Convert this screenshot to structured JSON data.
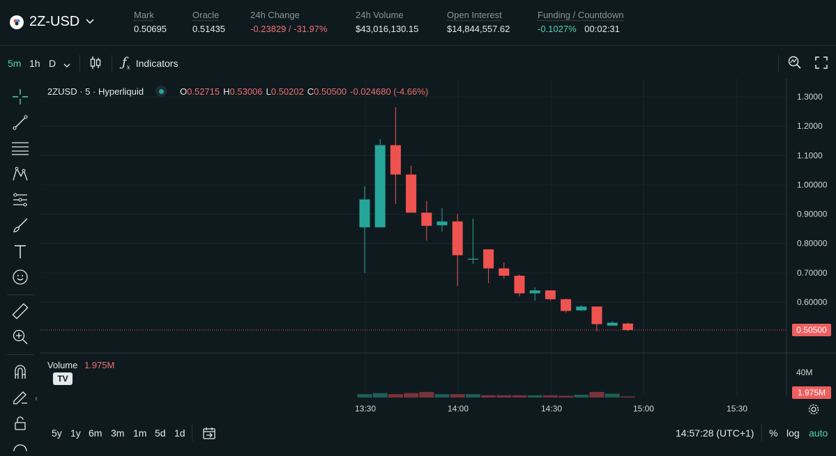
{
  "header": {
    "symbol": "2Z-USD",
    "stats": [
      {
        "label": "Mark",
        "value": "0.50695"
      },
      {
        "label": "Oracle",
        "value": "0.51435"
      },
      {
        "label": "24h Change",
        "value": "-0.23829 / -31.97%"
      },
      {
        "label": "24h Volume",
        "value": "$43,016,130.15"
      },
      {
        "label": "Open Interest",
        "value": "$14,844,557.62"
      },
      {
        "label": "Funding / Countdown",
        "value": "-0.1027%",
        "value2": "00:02:31"
      }
    ]
  },
  "toolbar": {
    "intervals": [
      "5m",
      "1h",
      "D"
    ],
    "indicators_label": "Indicators"
  },
  "legend": {
    "title": "2ZUSD · 5 · Hyperliquid",
    "o_key": "O",
    "o": "0.52715",
    "h_key": "H",
    "h": "0.53006",
    "l_key": "L",
    "l": "0.50202",
    "c_key": "C",
    "c": "0.50500",
    "change": "-0.024680 (-4.66%)"
  },
  "volume": {
    "label": "Volume",
    "value": "1.975M",
    "axis_label": "40M",
    "tag": "1.975M"
  },
  "price_tag": "0.50500",
  "chart_data": {
    "type": "candlestick",
    "price_ticks": [
      "1.3000",
      "1.2000",
      "1.1000",
      "1.00000",
      "0.90000",
      "0.80000",
      "0.70000",
      "0.60000"
    ],
    "time_ticks": [
      "13:30",
      "14:00",
      "14:30",
      "15:00",
      "15:30"
    ],
    "ylim": [
      0.47,
      1.33
    ],
    "candles": [
      {
        "o": 0.855,
        "h": 0.995,
        "l": 0.7,
        "c": 0.95
      },
      {
        "o": 0.855,
        "h": 1.155,
        "l": 0.855,
        "c": 1.135
      },
      {
        "o": 1.135,
        "h": 1.265,
        "l": 0.935,
        "c": 1.035
      },
      {
        "o": 1.035,
        "h": 1.065,
        "l": 0.905,
        "c": 0.905
      },
      {
        "o": 0.905,
        "h": 0.945,
        "l": 0.81,
        "c": 0.86
      },
      {
        "o": 0.862,
        "h": 0.92,
        "l": 0.84,
        "c": 0.875
      },
      {
        "o": 0.875,
        "h": 0.9,
        "l": 0.655,
        "c": 0.76
      },
      {
        "o": 0.745,
        "h": 0.885,
        "l": 0.73,
        "c": 0.748
      },
      {
        "o": 0.78,
        "h": 0.78,
        "l": 0.665,
        "c": 0.715
      },
      {
        "o": 0.715,
        "h": 0.735,
        "l": 0.68,
        "c": 0.69
      },
      {
        "o": 0.69,
        "h": 0.695,
        "l": 0.62,
        "c": 0.63
      },
      {
        "o": 0.63,
        "h": 0.65,
        "l": 0.605,
        "c": 0.64
      },
      {
        "o": 0.64,
        "h": 0.64,
        "l": 0.605,
        "c": 0.61
      },
      {
        "o": 0.61,
        "h": 0.612,
        "l": 0.565,
        "c": 0.57
      },
      {
        "o": 0.572,
        "h": 0.59,
        "l": 0.57,
        "c": 0.585
      },
      {
        "o": 0.585,
        "h": 0.585,
        "l": 0.5,
        "c": 0.525
      },
      {
        "o": 0.52,
        "h": 0.535,
        "l": 0.52,
        "c": 0.53
      },
      {
        "o": 0.527,
        "h": 0.53,
        "l": 0.502,
        "c": 0.505
      }
    ],
    "volumes": [
      0.3,
      0.4,
      0.3,
      0.4,
      0.5,
      0.3,
      0.3,
      0.3,
      0.2,
      0.2,
      0.2,
      0.2,
      0.2,
      0.15,
      0.25,
      0.5,
      0.35,
      0.1
    ]
  },
  "bottombar": {
    "ranges": [
      "5y",
      "1y",
      "6m",
      "3m",
      "1m",
      "5d",
      "1d"
    ],
    "clock": "14:57:28 (UTC+1)",
    "pct": "%",
    "log": "log",
    "auto": "auto"
  }
}
